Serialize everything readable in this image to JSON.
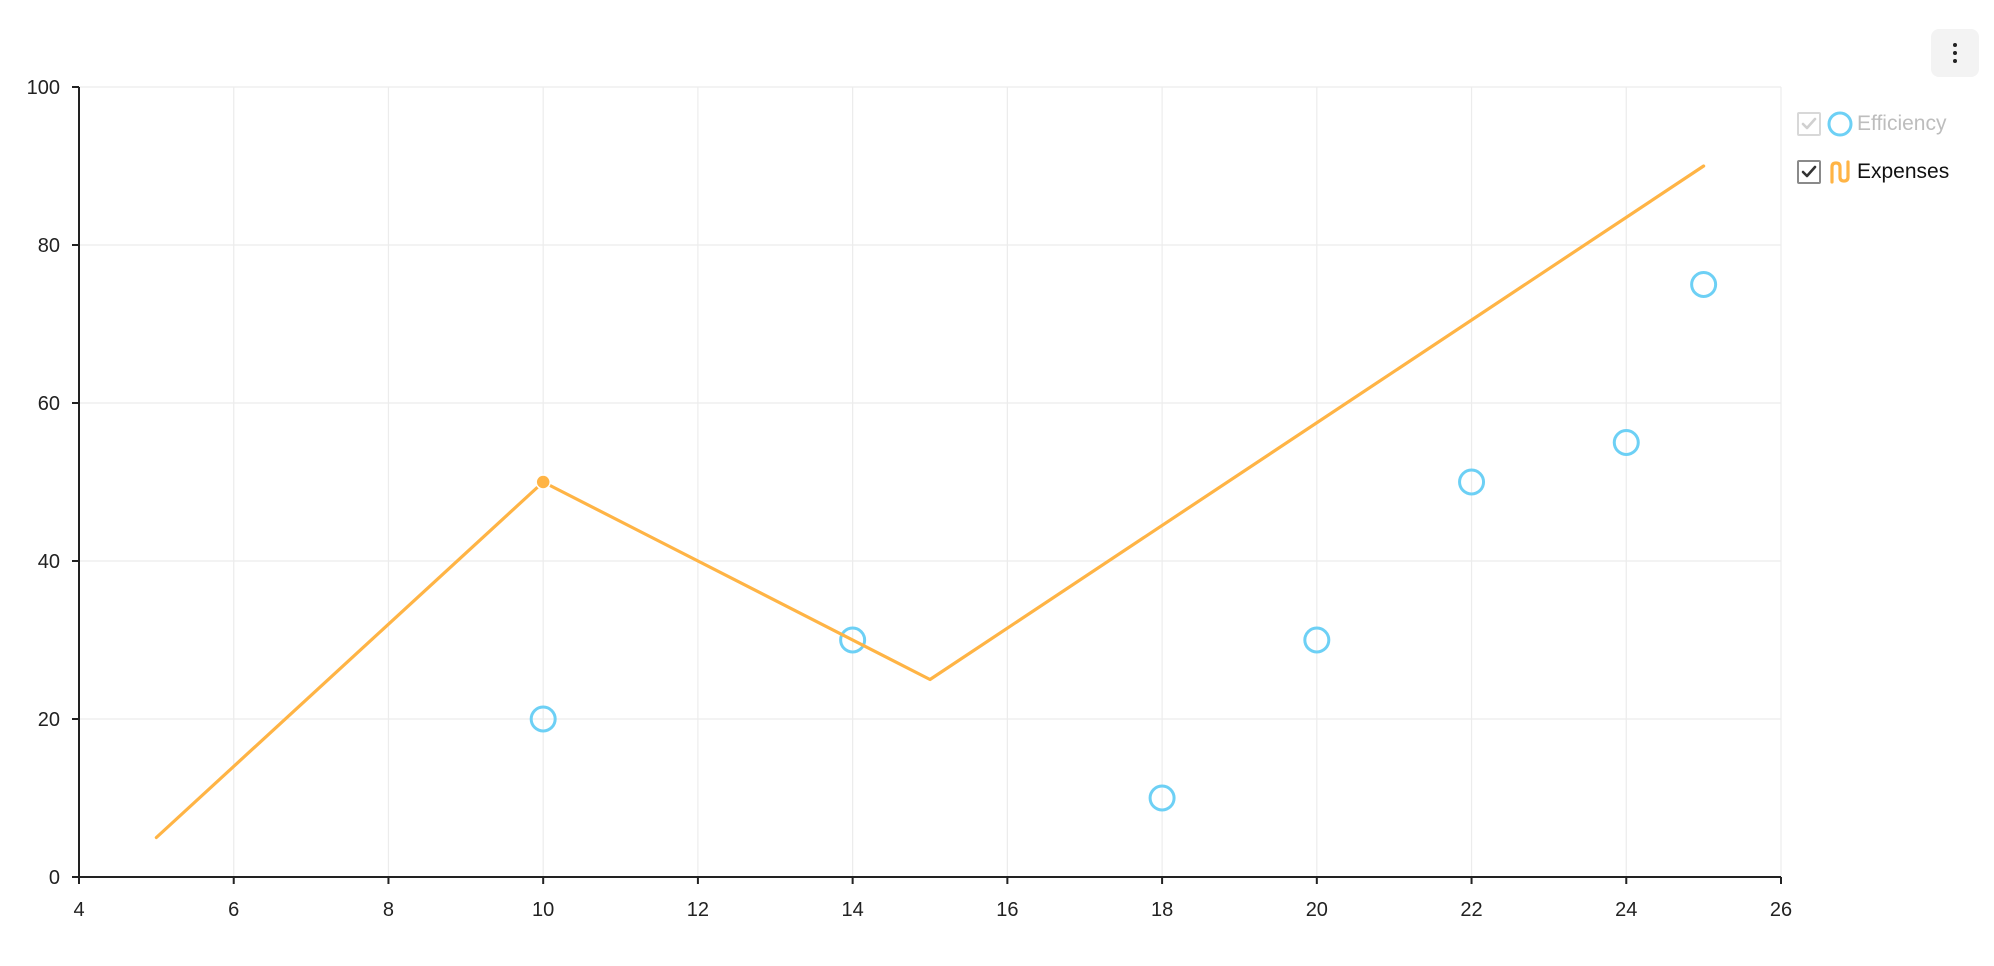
{
  "chart_data": {
    "type": "line",
    "xlim": [
      4,
      26
    ],
    "ylim": [
      0,
      100
    ],
    "x_ticks": [
      4,
      6,
      8,
      10,
      12,
      14,
      16,
      18,
      20,
      22,
      24,
      26
    ],
    "y_ticks": [
      0,
      20,
      40,
      60,
      80,
      100
    ],
    "grid": true,
    "legend_position": "right",
    "series": [
      {
        "name": "Efficiency",
        "type": "scatter",
        "marker": "hollow-circle",
        "color": "#6dd0f5",
        "visible": false,
        "points": [
          {
            "x": 10,
            "y": 20
          },
          {
            "x": 14,
            "y": 30
          },
          {
            "x": 18,
            "y": 10
          },
          {
            "x": 20,
            "y": 30
          },
          {
            "x": 22,
            "y": 50
          },
          {
            "x": 24,
            "y": 55
          },
          {
            "x": 25,
            "y": 75
          }
        ]
      },
      {
        "name": "Expenses",
        "type": "line",
        "color": "#ffb445",
        "visible": true,
        "points": [
          {
            "x": 5,
            "y": 5
          },
          {
            "x": 10,
            "y": 50
          },
          {
            "x": 15,
            "y": 25
          },
          {
            "x": 25,
            "y": 90
          }
        ],
        "highlighted_point": {
          "x": 10,
          "y": 50
        }
      }
    ]
  },
  "toolbar": {
    "menu_icon": "vertical-ellipsis-icon"
  },
  "legend": {
    "items": [
      {
        "label": "Efficiency",
        "checked": true,
        "disabled": true,
        "icon": "hollow-circle-icon",
        "color": "#6dd0f5"
      },
      {
        "label": "Expenses",
        "checked": true,
        "disabled": false,
        "icon": "line-series-icon",
        "color": "#ffb445"
      }
    ]
  }
}
